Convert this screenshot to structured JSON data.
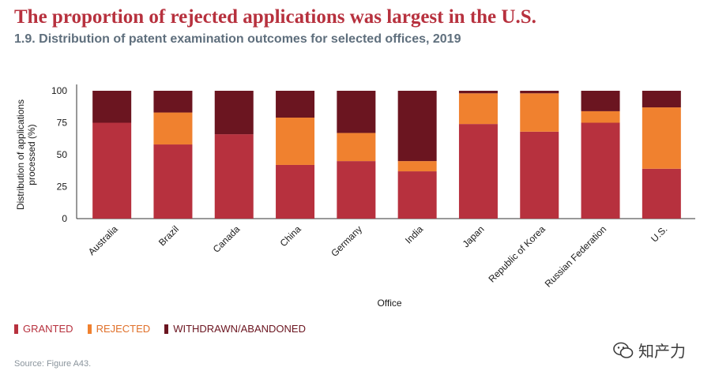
{
  "headline": "The proportion of rejected applications was largest in the U.S.",
  "subtitle": "1.9. Distribution of patent examination outcomes for selected offices, 2019",
  "legend": [
    {
      "label": "GRANTED",
      "color": "#b7313e"
    },
    {
      "label": "REJECTED",
      "color": "#f0812f"
    },
    {
      "label": "WITHDRAWN/ABANDONED",
      "color": "#6b1520"
    }
  ],
  "source": "Source: Figure A43.",
  "watermark": "知产力",
  "chart_data": {
    "type": "bar",
    "stacked": true,
    "title": "",
    "xlabel": "Office",
    "ylabel": "Distribution of applications processed (%)",
    "ylim": [
      0,
      100
    ],
    "yticks": [
      0,
      25,
      50,
      75,
      100
    ],
    "categories": [
      "Australia",
      "Brazil",
      "Canada",
      "China",
      "Germany",
      "India",
      "Japan",
      "Republic of Korea",
      "Russian Federation",
      "U.S."
    ],
    "series": [
      {
        "name": "GRANTED",
        "color": "#b7313e",
        "values": [
          75,
          58,
          66,
          42,
          45,
          37,
          74,
          68,
          75,
          39
        ]
      },
      {
        "name": "REJECTED",
        "color": "#f0812f",
        "values": [
          0,
          25,
          0,
          37,
          22,
          8,
          24,
          30,
          9,
          48
        ]
      },
      {
        "name": "WITHDRAWN/ABANDONED",
        "color": "#6b1520",
        "values": [
          25,
          17,
          34,
          21,
          33,
          55,
          2,
          2,
          16,
          13
        ]
      }
    ]
  }
}
